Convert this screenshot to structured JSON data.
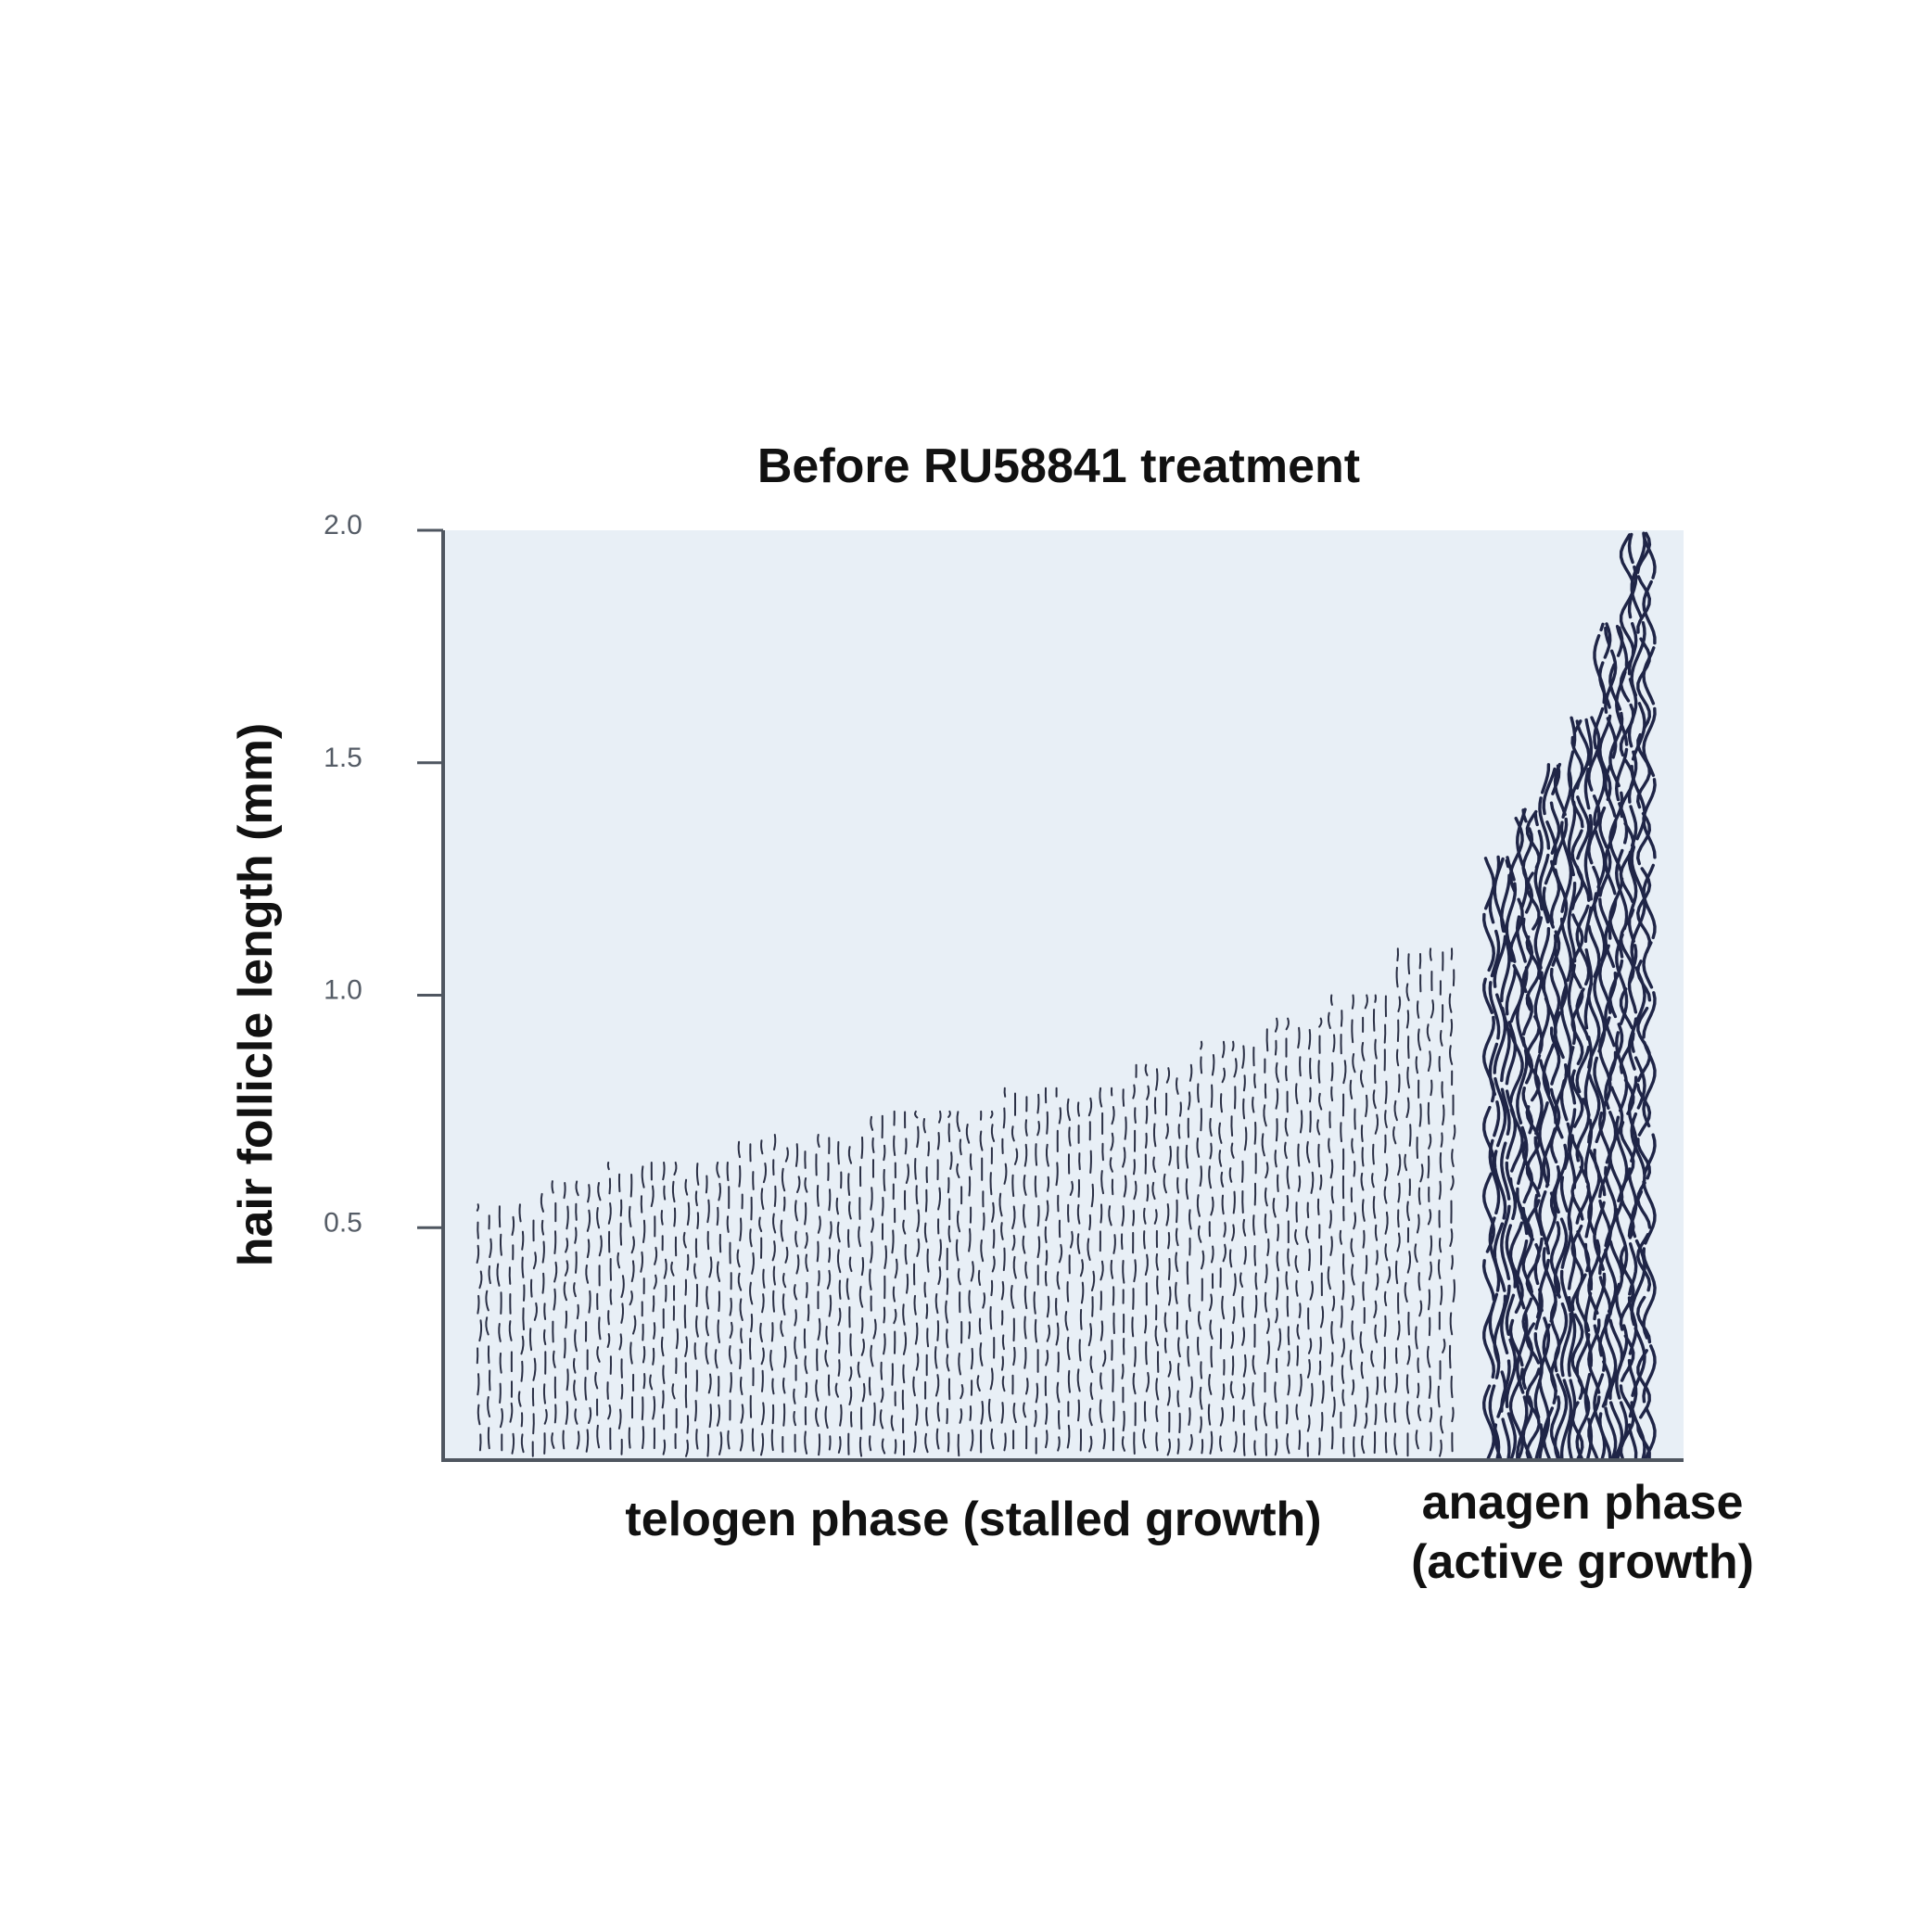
{
  "chart_data": {
    "type": "bar",
    "title": "Before RU58841 treatment",
    "ylabel": "hair follicle length (mm)",
    "xlabel": "",
    "ylim": [
      0,
      2.0
    ],
    "yticks": [
      "0.5",
      "1.0",
      "1.5",
      "2.0"
    ],
    "yticks_values": [
      0.5,
      1.0,
      1.5,
      2.0
    ],
    "grid": false,
    "categories": [
      {
        "label_lines": [
          "telogen phase (stalled growth)"
        ],
        "style": "sparse"
      },
      {
        "label_lines": [
          "anagen phase",
          "(active growth)"
        ],
        "style": "dense"
      }
    ],
    "groups": [
      {
        "category_index": 0,
        "values": [
          0.55,
          0.6,
          0.64,
          0.64,
          0.7,
          0.7,
          0.75,
          0.75,
          0.8,
          0.8,
          0.85,
          0.9,
          0.95,
          1.0,
          1.1
        ]
      },
      {
        "category_index": 1,
        "values": [
          1.3,
          1.4,
          1.5,
          1.6,
          1.8,
          2.0
        ]
      }
    ],
    "colors": {
      "plot_background": "#e8eff6",
      "axis": "#4f5660",
      "telogen_hair": "#2a2f45",
      "anagen_hair": "#1f2547"
    }
  }
}
